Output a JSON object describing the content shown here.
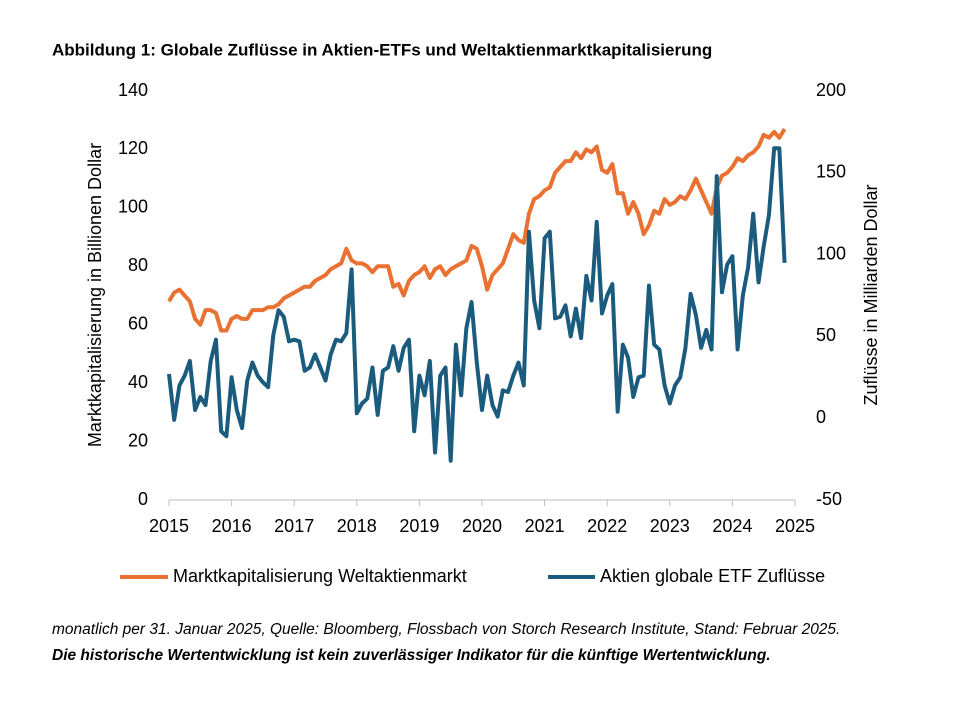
{
  "chart_data": {
    "type": "line",
    "title": "Abbildung 1: Globale Zuflüsse in Aktien-ETFs und Weltaktienmarktkapitalisierung",
    "y_label": "Marktkapitalisierung in Billionen Dollar",
    "y2_label": "Zuflüsse in Milliarden Dollar",
    "notes": [
      "monatlich per 31. Januar 2025, Quelle: Bloomberg, Flossbach von Storch Research Institute, Stand: Februar 2025.",
      "Die historische Wertentwicklung ist kein zuverlässiger Indikator für die künftige Wertentwicklung."
    ],
    "xlim": [
      2015,
      2025
    ],
    "xticks": [
      2015,
      2016,
      2017,
      2018,
      2019,
      2020,
      2021,
      2022,
      2023,
      2024,
      2025
    ],
    "ylim": [
      0,
      140
    ],
    "yticks": [
      0,
      20,
      40,
      60,
      80,
      100,
      120,
      140
    ],
    "y2lim": [
      -50,
      200
    ],
    "y2ticks": [
      -50,
      0,
      50,
      100,
      150,
      200
    ],
    "x": [
      2015,
      2015.083,
      2015.167,
      2015.25,
      2015.333,
      2015.417,
      2015.5,
      2015.583,
      2015.667,
      2015.75,
      2015.833,
      2015.917,
      2016,
      2016.083,
      2016.167,
      2016.25,
      2016.333,
      2016.417,
      2016.5,
      2016.583,
      2016.667,
      2016.75,
      2016.833,
      2016.917,
      2017,
      2017.083,
      2017.167,
      2017.25,
      2017.333,
      2017.417,
      2017.5,
      2017.583,
      2017.667,
      2017.75,
      2017.833,
      2017.917,
      2018,
      2018.083,
      2018.167,
      2018.25,
      2018.333,
      2018.417,
      2018.5,
      2018.583,
      2018.667,
      2018.75,
      2018.833,
      2018.917,
      2019,
      2019.083,
      2019.167,
      2019.25,
      2019.333,
      2019.417,
      2019.5,
      2019.583,
      2019.667,
      2019.75,
      2019.833,
      2019.917,
      2020,
      2020.083,
      2020.167,
      2020.25,
      2020.333,
      2020.417,
      2020.5,
      2020.583,
      2020.667,
      2020.75,
      2020.833,
      2020.917,
      2021,
      2021.083,
      2021.167,
      2021.25,
      2021.333,
      2021.417,
      2021.5,
      2021.583,
      2021.667,
      2021.75,
      2021.833,
      2021.917,
      2022,
      2022.083,
      2022.167,
      2022.25,
      2022.333,
      2022.417,
      2022.5,
      2022.583,
      2022.667,
      2022.75,
      2022.833,
      2022.917,
      2023,
      2023.083,
      2023.167,
      2023.25,
      2023.333,
      2023.417,
      2023.5,
      2023.583,
      2023.667,
      2023.75,
      2023.833,
      2023.917,
      2024,
      2024.083,
      2024.167,
      2024.25,
      2024.333,
      2024.417,
      2024.5,
      2024.583,
      2024.667,
      2024.75,
      2024.833
    ],
    "series": [
      {
        "name": "Marktkapitalisierung Weltaktienmarkt",
        "color": "#e97132",
        "axis": "y",
        "values": [
          68,
          71,
          72,
          70,
          68,
          62,
          60,
          65,
          65,
          64,
          58,
          58,
          62,
          63,
          62,
          62,
          65,
          65,
          65,
          66,
          66,
          67,
          69,
          70,
          71,
          72,
          73,
          73,
          75,
          76,
          77,
          79,
          80,
          81,
          86,
          82,
          81,
          81,
          80,
          78,
          80,
          80,
          80,
          73,
          74,
          70,
          75,
          77,
          78,
          80,
          76,
          79,
          80,
          77,
          79,
          80,
          81,
          82,
          87,
          86,
          80,
          72,
          77,
          79,
          81,
          86,
          91,
          89,
          88,
          98,
          103,
          104,
          106,
          107,
          112,
          114,
          116,
          116,
          119,
          117,
          120,
          119,
          121,
          113,
          112,
          115,
          105,
          105,
          98,
          102,
          98,
          91,
          94,
          99,
          98,
          103,
          101,
          102,
          104,
          103,
          106,
          110,
          106,
          102,
          98,
          107,
          111,
          112,
          114,
          117,
          116,
          118,
          119,
          121,
          125,
          124,
          126,
          124,
          127
        ]
      },
      {
        "name": "Aktien globale ETF Zuflüsse",
        "color": "#1b5c7e",
        "axis": "y2",
        "values": [
          27,
          -1,
          20,
          26,
          35,
          5,
          13,
          8,
          35,
          48,
          -8,
          -11,
          25,
          5,
          -6,
          23,
          34,
          26,
          22,
          19,
          51,
          66,
          62,
          47,
          48,
          47,
          29,
          31,
          39,
          31,
          23,
          39,
          48,
          47,
          52,
          91,
          3,
          9,
          12,
          31,
          2,
          29,
          31,
          44,
          29,
          43,
          48,
          -8,
          26,
          14,
          35,
          -21,
          26,
          31,
          -26,
          45,
          14,
          55,
          71,
          34,
          5,
          26,
          8,
          1,
          17,
          16,
          26,
          34,
          20,
          114,
          72,
          55,
          110,
          114,
          61,
          62,
          69,
          50,
          67,
          49,
          87,
          72,
          120,
          64,
          75,
          82,
          4,
          45,
          37,
          13,
          25,
          26,
          81,
          45,
          42,
          20,
          9,
          20,
          25,
          43,
          76,
          63,
          43,
          54,
          42,
          148,
          77,
          94,
          99,
          42,
          75,
          92,
          125,
          83,
          105,
          124,
          165,
          165,
          95
        ]
      }
    ]
  }
}
